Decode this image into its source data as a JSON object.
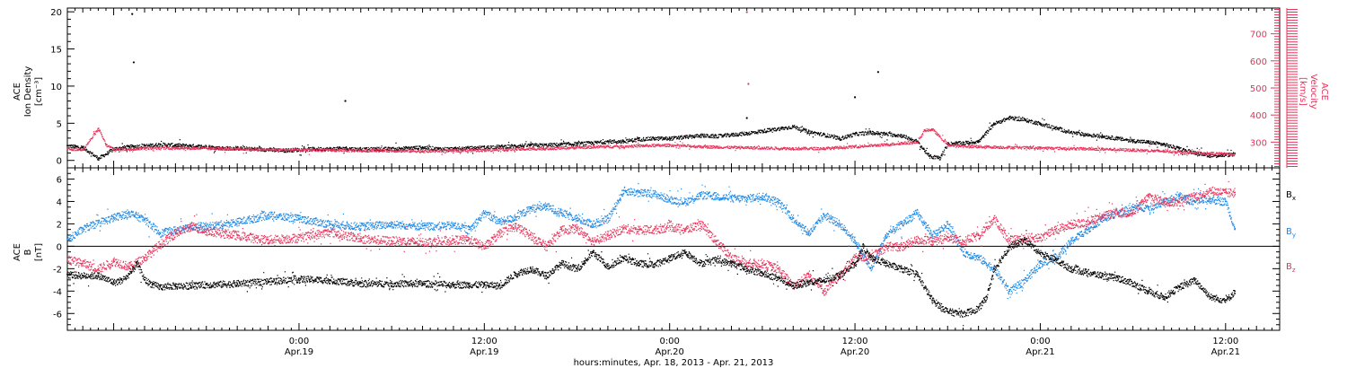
{
  "colors": {
    "black": "#000000",
    "blue": "#1e88e5",
    "red": "#e8325a",
    "axis": "#000000"
  },
  "xaxis": {
    "label": "hours:minutes, Apr. 18, 2013 - Apr. 21, 2013",
    "ticks": [
      {
        "time": "0:00",
        "date": "Apr.19",
        "hours": 24
      },
      {
        "time": "12:00",
        "date": "Apr.19",
        "hours": 36
      },
      {
        "time": "0:00",
        "date": "Apr.20",
        "hours": 48
      },
      {
        "time": "12:00",
        "date": "Apr.20",
        "hours": 60
      },
      {
        "time": "0:00",
        "date": "Apr.21",
        "hours": 72
      },
      {
        "time": "12:00",
        "date": "Apr.21",
        "hours": 84
      }
    ]
  },
  "chart_data": [
    {
      "type": "scatter",
      "x_unit": "hours since Apr. 18, 2013 0:00",
      "xlim": [
        9,
        87.5
      ],
      "ylabel_left": [
        "ACE",
        "Ion Density",
        "[cm⁻³]"
      ],
      "ylabel_right": [
        "ACE",
        "Velocity",
        "[km/s]"
      ],
      "ylim_left": [
        -1,
        20.5
      ],
      "ylim_right": [
        205,
        795
      ],
      "yticks_left": [
        0,
        5,
        10,
        15,
        20
      ],
      "yticks_right": [
        300,
        400,
        500,
        600,
        700
      ],
      "series": [
        {
          "name": "Ion Density",
          "color": "black",
          "axis": "left",
          "x": [
            9.0,
            10.0,
            11.0,
            12.0,
            13.0,
            14.0,
            15.0,
            16.0,
            17.0,
            18.0,
            19.0,
            20.0,
            21.0,
            22.0,
            23.0,
            24.0,
            25.0,
            26.0,
            27.0,
            28.0,
            29.0,
            30.0,
            31.0,
            32.0,
            33.0,
            34.0,
            35.0,
            36.0,
            37.0,
            38.0,
            39.0,
            40.0,
            41.0,
            42.0,
            43.0,
            44.0,
            45.0,
            46.0,
            47.0,
            48.0,
            49.0,
            50.0,
            51.0,
            52.0,
            53.0,
            54.0,
            55.0,
            56.0,
            57.0,
            58.0,
            59.0,
            60.0,
            61.0,
            62.0,
            63.0,
            64.0,
            64.8,
            65.5,
            66.0,
            67.0,
            68.0,
            69.0,
            70.0,
            71.0,
            72.0,
            73.0,
            74.0,
            75.0,
            76.0,
            77.0,
            78.0,
            79.0,
            80.0,
            81.0,
            82.0,
            83.0,
            84.0,
            84.6
          ],
          "y": [
            2.0,
            1.8,
            0.3,
            1.6,
            1.9,
            2.0,
            2.2,
            2.1,
            2.0,
            1.9,
            1.7,
            1.7,
            1.6,
            1.5,
            1.4,
            1.5,
            1.6,
            1.6,
            1.7,
            1.5,
            1.6,
            1.6,
            1.7,
            1.8,
            1.6,
            1.6,
            1.7,
            1.8,
            1.9,
            2.0,
            2.1,
            2.1,
            2.2,
            2.3,
            2.4,
            2.6,
            2.6,
            2.9,
            3.0,
            3.0,
            3.2,
            3.4,
            3.3,
            3.5,
            3.7,
            4.0,
            4.3,
            4.6,
            3.9,
            3.5,
            3.0,
            3.6,
            3.8,
            3.6,
            3.4,
            2.6,
            0.6,
            0.4,
            2.3,
            2.4,
            2.6,
            5.0,
            5.8,
            5.5,
            5.0,
            4.4,
            3.8,
            3.5,
            3.3,
            3.0,
            2.7,
            2.5,
            2.2,
            1.6,
            1.1,
            0.7,
            0.8,
            0.9
          ]
        },
        {
          "name": "Velocity",
          "color": "red",
          "axis": "right",
          "x": [
            9.0,
            10.0,
            11.0,
            11.5,
            12.0,
            13.0,
            14.0,
            16.0,
            18.0,
            20.0,
            22.0,
            24.0,
            26.0,
            28.0,
            30.0,
            32.0,
            34.0,
            36.0,
            38.0,
            40.0,
            42.0,
            44.0,
            46.0,
            48.0,
            50.0,
            52.0,
            54.0,
            56.0,
            58.0,
            60.0,
            62.0,
            63.0,
            64.0,
            64.5,
            65.0,
            66.0,
            66.5,
            68.0,
            70.0,
            72.0,
            74.0,
            76.0,
            78.0,
            80.0,
            81.0,
            82.0,
            83.0,
            84.0,
            84.6
          ],
          "y": [
            275,
            275,
            350,
            290,
            275,
            275,
            280,
            280,
            278,
            276,
            274,
            272,
            272,
            270,
            270,
            268,
            270,
            272,
            275,
            278,
            282,
            285,
            288,
            290,
            285,
            282,
            280,
            278,
            278,
            285,
            292,
            298,
            300,
            345,
            348,
            292,
            288,
            285,
            282,
            280,
            278,
            276,
            272,
            268,
            265,
            262,
            260,
            258,
            255
          ]
        }
      ],
      "outliers": [
        {
          "series": "Ion Density",
          "x": [
            13.2,
            13.3,
            27.0,
            60.0,
            61.5,
            53.0
          ],
          "y": [
            19.7,
            13.2,
            8.0,
            8.5,
            11.9,
            5.7
          ]
        },
        {
          "series": "Velocity",
          "x": [
            53.0,
            53.1
          ],
          "y": [
            780,
            515
          ]
        }
      ]
    },
    {
      "type": "scatter",
      "x_unit": "hours since Apr. 18, 2013 0:00",
      "xlim": [
        9,
        87.5
      ],
      "ylabel": [
        "ACE",
        "B",
        "[nT]"
      ],
      "ylim": [
        -7.5,
        7.0
      ],
      "yticks": [
        -6,
        -4,
        -2,
        0,
        2,
        4,
        6
      ],
      "zero_line": true,
      "series": [
        {
          "name": "Bx",
          "color": "black",
          "x": [
            9.0,
            10.0,
            11.0,
            12.0,
            12.5,
            13.0,
            13.5,
            14.0,
            14.5,
            15.0,
            16.0,
            17.0,
            18.0,
            20.0,
            22.0,
            24.0,
            26.0,
            28.0,
            30.0,
            32.0,
            34.0,
            35.0,
            36.0,
            37.0,
            38.0,
            39.0,
            40.0,
            41.0,
            42.0,
            42.5,
            43.0,
            44.0,
            45.0,
            46.0,
            47.0,
            48.0,
            49.0,
            50.0,
            51.0,
            52.0,
            53.0,
            54.0,
            55.0,
            56.0,
            57.0,
            58.0,
            59.0,
            60.0,
            60.5,
            61.0,
            62.0,
            63.0,
            64.0,
            65.0,
            66.0,
            67.0,
            68.0,
            68.5,
            69.0,
            70.0,
            71.0,
            72.0,
            73.0,
            74.0,
            75.0,
            76.0,
            77.0,
            78.0,
            79.0,
            80.0,
            81.0,
            82.0,
            83.0,
            84.0,
            84.6
          ],
          "y": [
            -2.5,
            -2.6,
            -2.6,
            -3.2,
            -3.0,
            -2.5,
            -1.5,
            -3.0,
            -3.4,
            -3.6,
            -3.5,
            -3.5,
            -3.4,
            -3.3,
            -3.1,
            -2.9,
            -3.0,
            -3.3,
            -3.3,
            -3.3,
            -3.4,
            -3.4,
            -3.4,
            -3.5,
            -2.4,
            -2.0,
            -2.6,
            -1.5,
            -2.0,
            -1.3,
            -0.5,
            -1.8,
            -1.0,
            -1.5,
            -1.6,
            -1.0,
            -0.5,
            -1.5,
            -1.2,
            -1.5,
            -2.0,
            -2.4,
            -2.8,
            -3.5,
            -3.2,
            -3.0,
            -2.5,
            -1.5,
            0.0,
            -1.0,
            -1.5,
            -2.0,
            -2.5,
            -4.8,
            -5.8,
            -6.0,
            -5.5,
            -4.5,
            -2.0,
            0.0,
            0.6,
            -0.6,
            -1.2,
            -2.0,
            -2.3,
            -2.6,
            -2.8,
            -3.3,
            -4.0,
            -4.5,
            -3.6,
            -3.0,
            -4.5,
            -4.8,
            -4.0
          ]
        },
        {
          "name": "By",
          "color": "blue",
          "x": [
            9.0,
            10.0,
            11.0,
            12.0,
            13.0,
            14.0,
            15.0,
            16.0,
            17.0,
            18.0,
            20.0,
            22.0,
            24.0,
            26.0,
            28.0,
            30.0,
            32.0,
            34.0,
            35.0,
            36.0,
            37.0,
            38.0,
            39.0,
            40.0,
            41.0,
            42.0,
            43.0,
            44.0,
            45.0,
            46.0,
            47.0,
            48.0,
            49.0,
            50.0,
            51.0,
            52.0,
            53.0,
            54.0,
            55.0,
            56.0,
            57.0,
            58.0,
            59.0,
            60.0,
            61.0,
            62.0,
            63.0,
            64.0,
            65.0,
            66.0,
            67.0,
            68.0,
            69.0,
            70.0,
            71.0,
            72.0,
            73.0,
            74.0,
            75.0,
            76.0,
            77.0,
            78.0,
            79.0,
            80.0,
            81.0,
            82.0,
            83.0,
            84.0,
            84.6
          ],
          "y": [
            0.6,
            1.6,
            2.1,
            2.6,
            3.0,
            2.4,
            1.2,
            1.5,
            1.8,
            1.8,
            2.2,
            2.8,
            2.5,
            2.0,
            1.8,
            2.0,
            1.8,
            1.9,
            1.5,
            3.0,
            2.2,
            2.6,
            3.4,
            3.6,
            3.0,
            2.5,
            2.0,
            2.5,
            5.0,
            4.8,
            4.7,
            4.2,
            4.0,
            4.6,
            4.5,
            4.3,
            4.3,
            4.5,
            4.0,
            2.5,
            1.2,
            2.8,
            2.0,
            0.5,
            -2.0,
            1.0,
            2.0,
            3.0,
            1.0,
            2.0,
            -0.5,
            -1.0,
            -2.0,
            -4.0,
            -3.0,
            -1.5,
            -1.0,
            0.5,
            1.5,
            2.5,
            3.0,
            3.5,
            3.5,
            4.0,
            4.5,
            4.0,
            4.2,
            4.0,
            1.5
          ]
        },
        {
          "name": "Bz",
          "color": "red",
          "x": [
            9.0,
            10.0,
            11.0,
            12.0,
            13.0,
            14.0,
            15.0,
            16.0,
            17.0,
            18.0,
            20.0,
            22.0,
            24.0,
            26.0,
            28.0,
            30.0,
            32.0,
            34.0,
            35.0,
            36.0,
            37.0,
            38.0,
            39.0,
            40.0,
            41.0,
            42.0,
            43.0,
            44.0,
            45.0,
            46.0,
            47.0,
            48.0,
            49.0,
            50.0,
            51.0,
            52.0,
            53.0,
            54.0,
            55.0,
            56.0,
            57.0,
            58.0,
            59.0,
            60.0,
            61.0,
            62.0,
            63.0,
            64.0,
            65.0,
            66.0,
            67.0,
            68.0,
            69.0,
            70.0,
            71.0,
            72.0,
            73.0,
            74.0,
            75.0,
            76.0,
            77.0,
            78.0,
            79.0,
            80.0,
            81.0,
            82.0,
            83.0,
            84.0,
            84.6
          ],
          "y": [
            -1.2,
            -1.5,
            -2.0,
            -1.3,
            -1.8,
            -1.0,
            0.2,
            1.2,
            1.8,
            1.4,
            1.0,
            0.6,
            0.8,
            1.3,
            0.7,
            0.5,
            0.4,
            0.6,
            0.6,
            0.0,
            1.2,
            1.8,
            1.0,
            0.0,
            1.5,
            1.6,
            0.5,
            1.0,
            1.6,
            1.5,
            1.5,
            1.8,
            1.5,
            2.0,
            0.5,
            -1.0,
            -1.5,
            -1.5,
            -2.0,
            -3.5,
            -2.5,
            -4.0,
            -2.5,
            -1.0,
            -1.0,
            0.0,
            0.0,
            0.6,
            0.5,
            0.8,
            0.5,
            1.0,
            2.5,
            0.5,
            0.8,
            0.8,
            1.5,
            2.0,
            2.2,
            2.8,
            3.0,
            3.0,
            4.5,
            4.0,
            4.0,
            4.5,
            5.0,
            4.8,
            4.8
          ]
        }
      ],
      "legend": [
        "Bx",
        "By",
        "Bz"
      ]
    }
  ]
}
